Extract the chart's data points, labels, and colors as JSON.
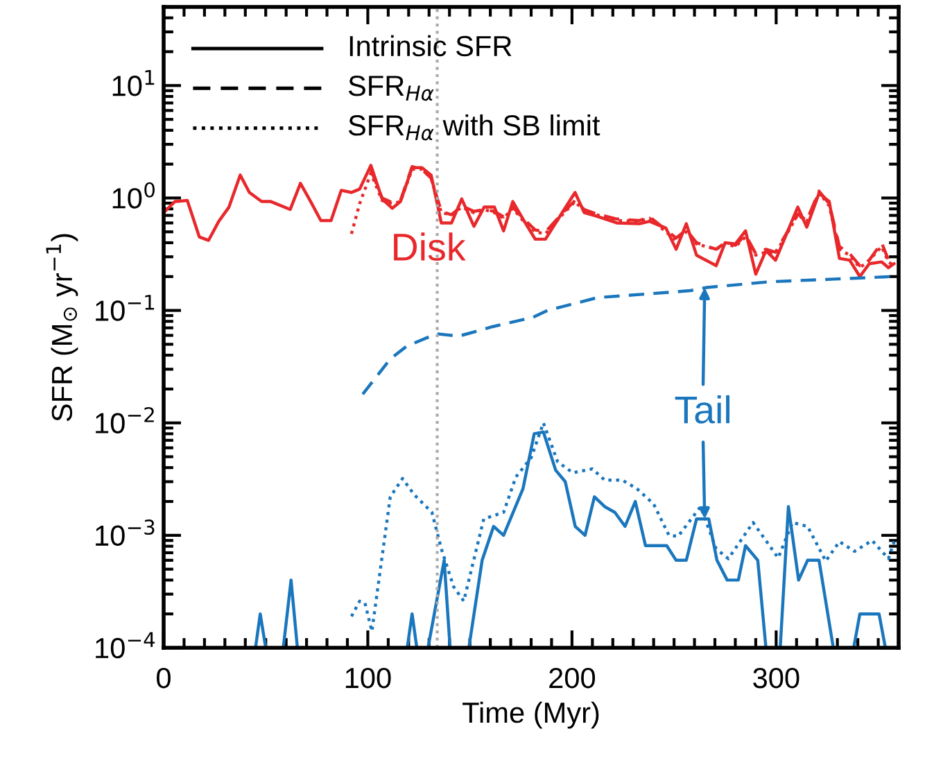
{
  "chart_data": {
    "type": "line",
    "xlabel": "Time (Myr)",
    "ylabel": "SFR (M$_{⊙}$ yr$^{−1}$)",
    "log": "y",
    "xlim": [
      0,
      360
    ],
    "ylim": [
      0.0001,
      50
    ],
    "xticks": [
      0,
      100,
      200,
      300
    ],
    "yticks": [
      {
        "value": 0.0001,
        "label": "10$^{−4}$"
      },
      {
        "value": 0.001,
        "label": "10$^{−3}$"
      },
      {
        "value": 0.01,
        "label": "10$^{−2}$"
      },
      {
        "value": 0.1,
        "label": "10$^{−1}$"
      },
      {
        "value": 1,
        "label": "10$^{0}$"
      },
      {
        "value": 10,
        "label": "10$^{1}$"
      }
    ],
    "grid": false,
    "ref_lines": [
      {
        "axis": "x",
        "value": 134,
        "color": "#aaaaaa",
        "line_style": "dotted"
      }
    ],
    "annotations": [
      "Disk",
      {
        "text": "Tail",
        "x": 265,
        "y": 0.0014
      },
      "Intrinsic SFR",
      "SFR$_{Hα}$",
      "SFR$_{Hα}$ with SB limit"
    ],
    "series": [
      {
        "color": "#e8282b",
        "line_style": "solid",
        "x": [
          0,
          5.5,
          11.6,
          17.5,
          22,
          27,
          32,
          37.5,
          42,
          48,
          52.5,
          62,
          67,
          72,
          77,
          82,
          87,
          92,
          96,
          101.5,
          107,
          112,
          116,
          121.7,
          126.5,
          131,
          136,
          141,
          146,
          152,
          157,
          162,
          166.5,
          171,
          176,
          182,
          187,
          195.6,
          201.5,
          206,
          212,
          222,
          233,
          238,
          246,
          251,
          256,
          261,
          270.6,
          275,
          280,
          285,
          290,
          295,
          299.7,
          310.6,
          315,
          321,
          326,
          331,
          336,
          341,
          345.6,
          351.7,
          355,
          357.7
        ],
        "values": [
          0.74,
          0.93,
          0.95,
          0.45,
          0.42,
          0.62,
          0.83,
          1.6,
          1.12,
          0.93,
          0.93,
          0.79,
          1.35,
          0.93,
          0.63,
          0.63,
          1.17,
          1.12,
          1.2,
          1.95,
          0.98,
          0.81,
          0.93,
          1.86,
          1.86,
          1.6,
          0.6,
          0.6,
          0.98,
          0.56,
          0.83,
          0.83,
          0.51,
          0.93,
          0.65,
          0.43,
          0.43,
          0.76,
          1.12,
          0.74,
          0.69,
          0.6,
          0.59,
          0.62,
          0.54,
          0.35,
          0.59,
          0.31,
          0.25,
          0.4,
          0.39,
          0.51,
          0.21,
          0.34,
          0.28,
          0.83,
          0.55,
          1.1,
          0.93,
          0.29,
          0.28,
          0.2,
          0.26,
          0.27,
          0.24,
          0.26
        ]
      },
      {
        "color": "#e8282b",
        "line_style": "dashed",
        "x": [
          101.5,
          107,
          112,
          116,
          121.7,
          126.5,
          131,
          136,
          141,
          146,
          152,
          157,
          162,
          166.5,
          171,
          176,
          182,
          187,
          195.6,
          201.5,
          206,
          212,
          222,
          233,
          238,
          246,
          251,
          256,
          261,
          270.6,
          275,
          280,
          285,
          290,
          295,
          299.7,
          310.6,
          315,
          321,
          326,
          331,
          336,
          341,
          345.6,
          351.7,
          355,
          357.7
        ],
        "values": [
          1.78,
          1.0,
          0.91,
          0.95,
          1.9,
          1.8,
          1.5,
          0.76,
          0.71,
          0.85,
          0.76,
          0.79,
          0.76,
          0.68,
          0.83,
          0.66,
          0.52,
          0.5,
          0.74,
          0.95,
          0.79,
          0.72,
          0.65,
          0.63,
          0.68,
          0.52,
          0.44,
          0.52,
          0.4,
          0.35,
          0.4,
          0.38,
          0.47,
          0.32,
          0.35,
          0.33,
          0.72,
          0.63,
          1.15,
          0.89,
          0.37,
          0.32,
          0.25,
          0.28,
          0.4,
          0.28,
          0.26
        ]
      },
      {
        "color": "#e8282b",
        "line_style": "dotted",
        "x": [
          92,
          96,
          101.5,
          107,
          112,
          116,
          121.7,
          126.5,
          131,
          136,
          141,
          146,
          152,
          157,
          162,
          166.5,
          171,
          176,
          182,
          187,
          195.6,
          201.5,
          206,
          212,
          222,
          233,
          238,
          246,
          251,
          256,
          261,
          270.6,
          275,
          280,
          285,
          290,
          295,
          299.7,
          310.6,
          315,
          321,
          326,
          331,
          336,
          341,
          345.6,
          351.7,
          355,
          357.7
        ],
        "values": [
          0.48,
          0.89,
          1.66,
          0.95,
          0.89,
          0.93,
          1.8,
          1.8,
          1.5,
          0.74,
          0.71,
          0.83,
          0.74,
          0.79,
          0.74,
          0.66,
          0.81,
          0.63,
          0.5,
          0.48,
          0.72,
          0.93,
          0.76,
          0.71,
          0.63,
          0.62,
          0.66,
          0.5,
          0.42,
          0.5,
          0.39,
          0.35,
          0.39,
          0.37,
          0.45,
          0.31,
          0.33,
          0.32,
          0.71,
          0.62,
          1.12,
          0.85,
          0.35,
          0.31,
          0.24,
          0.28,
          0.37,
          0.27,
          0.25
        ]
      },
      {
        "color": "#1a76bd",
        "line_style": "solid",
        "x": [
          45,
          47.3,
          50,
          54,
          58.6,
          62.4,
          65.5,
          90,
          119.3,
          121.7,
          124,
          127,
          129.5,
          137.4,
          140.3,
          145,
          149.5,
          156,
          161.6,
          166.5,
          176,
          181.5,
          186,
          192,
          196.7,
          201.6,
          206.4,
          211,
          216,
          221,
          226,
          231,
          236,
          246.4,
          251,
          256,
          261,
          267,
          271,
          276,
          281.5,
          285,
          291,
          295,
          298,
          302,
          306,
          311,
          315.4,
          321,
          328,
          333,
          338,
          341,
          350.4,
          353.5
        ],
        "values": [
          0.0001,
          0.0002,
          0.0001,
          null,
          0.0001,
          0.0004,
          0.0001,
          null,
          0.0001,
          0.0002,
          0.0001,
          null,
          0.0001,
          0.0006,
          0.0001,
          null,
          0.0001,
          0.0006,
          0.0012,
          0.001,
          0.0026,
          0.008,
          0.0083,
          0.0038,
          0.003,
          0.0012,
          0.001,
          0.0022,
          0.0018,
          0.0016,
          0.0012,
          0.002,
          0.00081,
          0.00081,
          0.0006,
          0.0006,
          0.0014,
          0.0014,
          0.0006,
          0.0004,
          0.0004,
          0.00081,
          0.0006,
          0.0001,
          null,
          0.0001,
          0.0018,
          0.0004,
          0.0006,
          0.0006,
          0.0001,
          null,
          0.0001,
          0.0002,
          0.0002,
          0.0001
        ]
      },
      {
        "color": "#1a76bd",
        "line_style": "dashed",
        "x": [
          97.5,
          111,
          119,
          133.6,
          144.5,
          161.5,
          181,
          188,
          212.5,
          236.5,
          258,
          266,
          297,
          328.6,
          356.5
        ],
        "values": [
          0.018,
          0.037,
          0.048,
          0.062,
          0.059,
          0.072,
          0.087,
          0.1,
          0.13,
          0.14,
          0.15,
          0.16,
          0.18,
          0.19,
          0.2
        ]
      },
      {
        "color": "#1a76bd",
        "line_style": "dotted",
        "x": [
          92,
          96,
          98.6,
          102,
          111,
          117,
          122.7,
          131.4,
          136,
          142,
          147,
          156.8,
          166.5,
          172.5,
          180,
          186,
          193,
          200.4,
          210,
          216,
          224.6,
          231.8,
          240,
          247.5,
          252,
          263,
          270.6,
          276.6,
          288.7,
          301,
          308,
          315.4,
          324.3,
          331,
          338.4,
          347,
          355,
          358
        ],
        "values": [
          0.00019,
          0.00026,
          0.00025,
          0.00014,
          0.0022,
          0.0032,
          0.0023,
          0.0016,
          0.00076,
          0.00035,
          0.00026,
          0.0014,
          0.0016,
          0.0033,
          0.0049,
          0.01,
          0.0045,
          0.0036,
          0.0039,
          0.0031,
          0.0031,
          0.0026,
          0.0019,
          0.001,
          0.00098,
          0.0018,
          0.00076,
          0.00062,
          0.0013,
          0.00063,
          0.0013,
          0.0012,
          0.00059,
          0.00088,
          0.00072,
          0.0009,
          0.00062,
          0.0009
        ]
      }
    ]
  }
}
